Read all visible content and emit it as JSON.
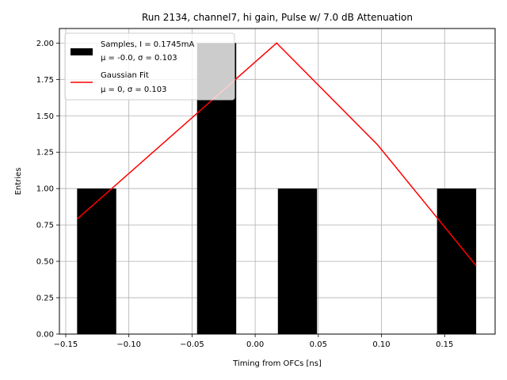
{
  "chart_data": {
    "type": "bar",
    "title": "Run 2134, channel7, hi gain, Pulse w/ 7.0 dB Attenuation",
    "xlabel": "Timing from OFCs [ns]",
    "ylabel": "Entries",
    "xlim": [
      -0.155,
      0.19
    ],
    "ylim": [
      0,
      2.1
    ],
    "xticks": [
      -0.15,
      -0.1,
      -0.05,
      0.0,
      0.05,
      0.1,
      0.15
    ],
    "xtick_labels": [
      "−0.15",
      "−0.10",
      "−0.05",
      "0.00",
      "0.05",
      "0.10",
      "0.15"
    ],
    "yticks": [
      0,
      0.25,
      0.5,
      0.75,
      1.0,
      1.25,
      1.5,
      1.75,
      2.0
    ],
    "ytick_labels": [
      "0.00",
      "0.25",
      "0.50",
      "0.75",
      "1.00",
      "1.25",
      "1.50",
      "1.75",
      "2.00"
    ],
    "grid": true,
    "legend_position": "top-left",
    "series": [
      {
        "name": "Samples, I = 0.1745mA",
        "stats": "μ = -0.0, σ = 0.103",
        "kind": "histogram",
        "color": "#000000",
        "bins": [
          {
            "x0": -0.141,
            "x1": -0.11,
            "count": 1
          },
          {
            "x0": -0.046,
            "x1": -0.015,
            "count": 2
          },
          {
            "x0": 0.018,
            "x1": 0.049,
            "count": 1
          },
          {
            "x0": 0.144,
            "x1": 0.175,
            "count": 1
          }
        ]
      },
      {
        "name": "Gaussian Fit",
        "stats": "μ = 0, σ = 0.103",
        "kind": "line",
        "color": "#ff0000",
        "x": [
          -0.141,
          0.017,
          0.097,
          0.175
        ],
        "y": [
          0.79,
          2.0,
          1.3,
          0.47
        ]
      }
    ]
  }
}
